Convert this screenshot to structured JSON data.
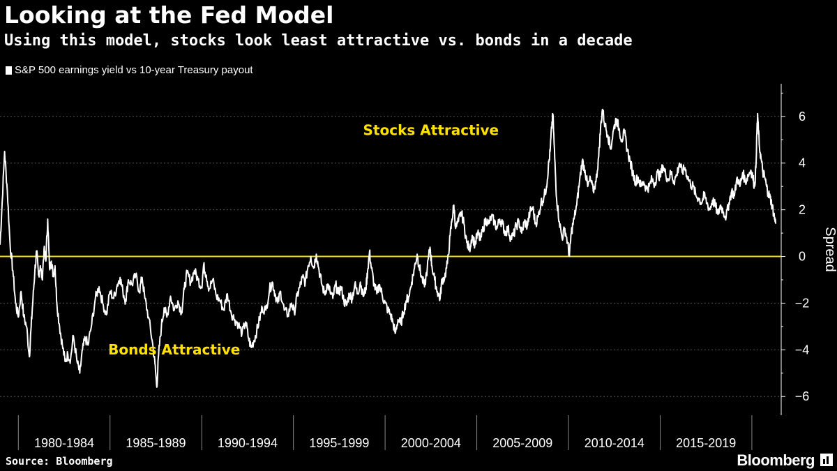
{
  "header": {
    "title": "Looking at the Fed Model",
    "subtitle": "Using this model, stocks look least attractive vs. bonds in a decade"
  },
  "footer": {
    "source": "Source: Bloomberg",
    "brand": "Bloomberg"
  },
  "colors": {
    "background": "#000000",
    "series": "#ffffff",
    "zero_line": "#ffe100",
    "annotation": "#ffe100",
    "grid": "#555555"
  },
  "chart_data": {
    "type": "line",
    "title": "Looking at the Fed Model",
    "subtitle": "Using this model, stocks look least attractive vs. bonds in a decade",
    "ylabel": "Spread",
    "xlabel": "",
    "ylim": [
      -6.8,
      7.4
    ],
    "xlim": [
      1979.0,
      2021.6
    ],
    "y_ticks": [
      -6,
      -4,
      -2,
      0,
      2,
      4,
      6
    ],
    "x_categories": [
      "1980-1984",
      "1985-1989",
      "1990-1994",
      "1995-1999",
      "2000-2004",
      "2005-2009",
      "2010-2014",
      "2015-2019"
    ],
    "x_category_bounds": [
      1980,
      1985,
      1990,
      1995,
      2000,
      2005,
      2010,
      2015,
      2020
    ],
    "grid": "horizontal dotted",
    "y_axis_position": "right",
    "legend": "top-left",
    "reference_line": {
      "y": 0,
      "color": "#ffe100"
    },
    "annotations": [
      {
        "text": "Stocks Attractive",
        "x": 2002.5,
        "y": 5.2
      },
      {
        "text": "Bonds Attractive",
        "x": 1988.5,
        "y": -4.2
      }
    ],
    "series": [
      {
        "name": "S&P 500 earnings yield vs 10-year Treasury payout",
        "color": "#ffffff",
        "points": [
          [
            1979.0,
            0.5
          ],
          [
            1979.1,
            2.0
          ],
          [
            1979.25,
            4.5
          ],
          [
            1979.4,
            2.8
          ],
          [
            1979.55,
            0.5
          ],
          [
            1979.7,
            -0.6
          ],
          [
            1979.85,
            -2.0
          ],
          [
            1980.0,
            -2.6
          ],
          [
            1980.15,
            -1.5
          ],
          [
            1980.3,
            -2.6
          ],
          [
            1980.45,
            -3.0
          ],
          [
            1980.6,
            -4.3
          ],
          [
            1980.7,
            -3.0
          ],
          [
            1980.8,
            -1.8
          ],
          [
            1980.9,
            -0.6
          ],
          [
            1981.0,
            0.2
          ],
          [
            1981.1,
            -0.8
          ],
          [
            1981.2,
            -0.4
          ],
          [
            1981.3,
            -1.0
          ],
          [
            1981.4,
            0.3
          ],
          [
            1981.5,
            -0.2
          ],
          [
            1981.6,
            1.6
          ],
          [
            1981.7,
            -0.5
          ],
          [
            1981.8,
            -0.2
          ],
          [
            1981.9,
            -0.8
          ],
          [
            1982.0,
            -0.4
          ],
          [
            1982.1,
            -2.0
          ],
          [
            1982.25,
            -3.0
          ],
          [
            1982.4,
            -3.8
          ],
          [
            1982.55,
            -4.5
          ],
          [
            1982.7,
            -4.2
          ],
          [
            1982.85,
            -4.4
          ],
          [
            1983.0,
            -3.4
          ],
          [
            1983.2,
            -4.5
          ],
          [
            1983.35,
            -5.0
          ],
          [
            1983.5,
            -4.0
          ],
          [
            1983.65,
            -3.5
          ],
          [
            1983.8,
            -3.8
          ],
          [
            1984.0,
            -2.9
          ],
          [
            1984.2,
            -1.8
          ],
          [
            1984.4,
            -1.3
          ],
          [
            1984.6,
            -2.0
          ],
          [
            1984.8,
            -2.5
          ],
          [
            1985.0,
            -1.5
          ],
          [
            1985.2,
            -1.8
          ],
          [
            1985.4,
            -1.2
          ],
          [
            1985.55,
            -0.9
          ],
          [
            1985.7,
            -1.5
          ],
          [
            1985.85,
            -1.9
          ],
          [
            1986.0,
            -1.0
          ],
          [
            1986.2,
            -1.2
          ],
          [
            1986.4,
            -0.8
          ],
          [
            1986.6,
            -1.5
          ],
          [
            1986.75,
            -0.9
          ],
          [
            1986.9,
            -1.8
          ],
          [
            1987.1,
            -2.6
          ],
          [
            1987.3,
            -3.6
          ],
          [
            1987.45,
            -4.6
          ],
          [
            1987.55,
            -5.6
          ],
          [
            1987.65,
            -4.2
          ],
          [
            1987.8,
            -3.0
          ],
          [
            1987.95,
            -2.2
          ],
          [
            1988.1,
            -2.6
          ],
          [
            1988.3,
            -1.7
          ],
          [
            1988.5,
            -2.3
          ],
          [
            1988.7,
            -1.9
          ],
          [
            1988.9,
            -2.4
          ],
          [
            1989.05,
            -1.4
          ],
          [
            1989.2,
            -0.7
          ],
          [
            1989.4,
            -1.1
          ],
          [
            1989.6,
            -0.6
          ],
          [
            1989.8,
            -1.0
          ],
          [
            1990.0,
            -1.3
          ],
          [
            1990.1,
            -0.4
          ],
          [
            1990.25,
            -0.8
          ],
          [
            1990.4,
            -1.4
          ],
          [
            1990.6,
            -1.0
          ],
          [
            1990.8,
            -1.7
          ],
          [
            1991.0,
            -1.9
          ],
          [
            1991.2,
            -2.3
          ],
          [
            1991.4,
            -1.6
          ],
          [
            1991.6,
            -2.4
          ],
          [
            1991.8,
            -2.7
          ],
          [
            1992.0,
            -2.9
          ],
          [
            1992.2,
            -3.3
          ],
          [
            1992.4,
            -2.8
          ],
          [
            1992.55,
            -3.5
          ],
          [
            1992.7,
            -3.9
          ],
          [
            1992.85,
            -3.6
          ],
          [
            1993.0,
            -3.2
          ],
          [
            1993.15,
            -2.7
          ],
          [
            1993.3,
            -2.2
          ],
          [
            1993.5,
            -2.3
          ],
          [
            1993.7,
            -1.4
          ],
          [
            1993.85,
            -1.1
          ],
          [
            1994.0,
            -1.6
          ],
          [
            1994.15,
            -2.0
          ],
          [
            1994.3,
            -1.5
          ],
          [
            1994.5,
            -2.3
          ],
          [
            1994.7,
            -2.5
          ],
          [
            1994.9,
            -2.0
          ],
          [
            1995.05,
            -2.4
          ],
          [
            1995.2,
            -1.7
          ],
          [
            1995.35,
            -1.3
          ],
          [
            1995.5,
            -0.9
          ],
          [
            1995.65,
            -1.1
          ],
          [
            1995.8,
            -0.4
          ],
          [
            1995.95,
            0.0
          ],
          [
            1996.1,
            -0.5
          ],
          [
            1996.25,
            0.1
          ],
          [
            1996.4,
            -0.6
          ],
          [
            1996.55,
            -1.2
          ],
          [
            1996.7,
            -1.6
          ],
          [
            1996.85,
            -1.2
          ],
          [
            1997.0,
            -1.5
          ],
          [
            1997.15,
            -1.8
          ],
          [
            1997.3,
            -1.2
          ],
          [
            1997.45,
            -1.6
          ],
          [
            1997.6,
            -1.3
          ],
          [
            1997.75,
            -1.9
          ],
          [
            1997.9,
            -2.1
          ],
          [
            1998.05,
            -1.6
          ],
          [
            1998.2,
            -1.8
          ],
          [
            1998.35,
            -1.2
          ],
          [
            1998.5,
            -1.6
          ],
          [
            1998.65,
            -1.1
          ],
          [
            1998.8,
            -1.7
          ],
          [
            1998.95,
            -1.4
          ],
          [
            1999.05,
            -0.6
          ],
          [
            1999.15,
            0.2
          ],
          [
            1999.25,
            -0.5
          ],
          [
            1999.4,
            -1.2
          ],
          [
            1999.55,
            -1.6
          ],
          [
            1999.7,
            -1.2
          ],
          [
            1999.85,
            -1.7
          ],
          [
            2000.0,
            -2.0
          ],
          [
            2000.15,
            -2.3
          ],
          [
            2000.3,
            -2.5
          ],
          [
            2000.45,
            -2.9
          ],
          [
            2000.55,
            -3.3
          ],
          [
            2000.7,
            -2.7
          ],
          [
            2000.85,
            -2.9
          ],
          [
            2001.0,
            -2.4
          ],
          [
            2001.15,
            -1.9
          ],
          [
            2001.3,
            -1.7
          ],
          [
            2001.45,
            -1.1
          ],
          [
            2001.6,
            -0.5
          ],
          [
            2001.75,
            0.1
          ],
          [
            2001.85,
            -0.4
          ],
          [
            2002.0,
            -0.9
          ],
          [
            2002.15,
            -1.3
          ],
          [
            2002.3,
            -0.5
          ],
          [
            2002.45,
            0.4
          ],
          [
            2002.55,
            -0.4
          ],
          [
            2002.7,
            -1.0
          ],
          [
            2002.85,
            -1.5
          ],
          [
            2003.0,
            -1.8
          ],
          [
            2003.1,
            -1.0
          ],
          [
            2003.25,
            -0.9
          ],
          [
            2003.4,
            -0.3
          ],
          [
            2003.55,
            0.9
          ],
          [
            2003.65,
            1.6
          ],
          [
            2003.75,
            2.2
          ],
          [
            2003.85,
            1.2
          ],
          [
            2004.0,
            1.5
          ],
          [
            2004.15,
            1.9
          ],
          [
            2004.3,
            1.4
          ],
          [
            2004.45,
            0.6
          ],
          [
            2004.6,
            0.3
          ],
          [
            2004.75,
            0.9
          ],
          [
            2004.9,
            0.5
          ],
          [
            2005.05,
            1.0
          ],
          [
            2005.2,
            0.7
          ],
          [
            2005.35,
            1.2
          ],
          [
            2005.5,
            1.6
          ],
          [
            2005.65,
            1.4
          ],
          [
            2005.8,
            1.7
          ],
          [
            2005.95,
            1.5
          ],
          [
            2006.1,
            1.2
          ],
          [
            2006.25,
            1.6
          ],
          [
            2006.4,
            1.4
          ],
          [
            2006.55,
            1.0
          ],
          [
            2006.7,
            1.2
          ],
          [
            2006.85,
            0.8
          ],
          [
            2007.0,
            0.9
          ],
          [
            2007.15,
            1.3
          ],
          [
            2007.3,
            1.5
          ],
          [
            2007.45,
            1.0
          ],
          [
            2007.6,
            1.5
          ],
          [
            2007.75,
            1.3
          ],
          [
            2007.9,
            1.9
          ],
          [
            2008.05,
            2.1
          ],
          [
            2008.2,
            1.4
          ],
          [
            2008.35,
            1.7
          ],
          [
            2008.5,
            2.3
          ],
          [
            2008.65,
            2.5
          ],
          [
            2008.8,
            3.0
          ],
          [
            2008.9,
            3.8
          ],
          [
            2009.0,
            4.5
          ],
          [
            2009.08,
            5.5
          ],
          [
            2009.15,
            6.1
          ],
          [
            2009.25,
            4.2
          ],
          [
            2009.35,
            2.5
          ],
          [
            2009.5,
            1.5
          ],
          [
            2009.65,
            0.8
          ],
          [
            2009.8,
            1.2
          ],
          [
            2009.95,
            0.6
          ],
          [
            2010.05,
            0.0
          ],
          [
            2010.15,
            1.0
          ],
          [
            2010.3,
            1.6
          ],
          [
            2010.45,
            2.2
          ],
          [
            2010.6,
            3.2
          ],
          [
            2010.75,
            4.1
          ],
          [
            2010.9,
            3.7
          ],
          [
            2011.05,
            3.0
          ],
          [
            2011.2,
            3.3
          ],
          [
            2011.35,
            2.8
          ],
          [
            2011.5,
            3.2
          ],
          [
            2011.65,
            4.3
          ],
          [
            2011.75,
            5.5
          ],
          [
            2011.85,
            6.3
          ],
          [
            2012.0,
            5.6
          ],
          [
            2012.15,
            5.2
          ],
          [
            2012.3,
            4.6
          ],
          [
            2012.45,
            5.4
          ],
          [
            2012.6,
            5.9
          ],
          [
            2012.75,
            5.5
          ],
          [
            2012.9,
            5.0
          ],
          [
            2013.05,
            5.3
          ],
          [
            2013.2,
            4.6
          ],
          [
            2013.35,
            4.1
          ],
          [
            2013.5,
            3.6
          ],
          [
            2013.65,
            3.2
          ],
          [
            2013.8,
            3.4
          ],
          [
            2013.95,
            3.0
          ],
          [
            2014.1,
            3.2
          ],
          [
            2014.25,
            2.9
          ],
          [
            2014.4,
            3.0
          ],
          [
            2014.55,
            3.3
          ],
          [
            2014.7,
            3.1
          ],
          [
            2014.85,
            3.6
          ],
          [
            2015.0,
            3.4
          ],
          [
            2015.15,
            3.9
          ],
          [
            2015.3,
            3.5
          ],
          [
            2015.45,
            3.3
          ],
          [
            2015.6,
            3.6
          ],
          [
            2015.75,
            3.2
          ],
          [
            2015.9,
            3.5
          ],
          [
            2016.05,
            4.0
          ],
          [
            2016.2,
            3.6
          ],
          [
            2016.35,
            3.8
          ],
          [
            2016.5,
            3.4
          ],
          [
            2016.65,
            3.1
          ],
          [
            2016.8,
            3.0
          ],
          [
            2016.95,
            2.6
          ],
          [
            2017.1,
            2.5
          ],
          [
            2017.25,
            2.3
          ],
          [
            2017.4,
            2.6
          ],
          [
            2017.55,
            2.3
          ],
          [
            2017.7,
            2.0
          ],
          [
            2017.85,
            2.4
          ],
          [
            2018.0,
            2.2
          ],
          [
            2018.15,
            1.8
          ],
          [
            2018.3,
            2.2
          ],
          [
            2018.45,
            1.9
          ],
          [
            2018.6,
            1.7
          ],
          [
            2018.75,
            2.3
          ],
          [
            2018.9,
            2.8
          ],
          [
            2019.05,
            2.6
          ],
          [
            2019.2,
            3.4
          ],
          [
            2019.35,
            3.0
          ],
          [
            2019.5,
            3.6
          ],
          [
            2019.65,
            3.2
          ],
          [
            2019.8,
            3.5
          ],
          [
            2019.95,
            3.7
          ],
          [
            2020.05,
            3.4
          ],
          [
            2020.15,
            3.0
          ],
          [
            2020.22,
            3.8
          ],
          [
            2020.28,
            5.5
          ],
          [
            2020.32,
            6.0
          ],
          [
            2020.4,
            4.8
          ],
          [
            2020.5,
            4.2
          ],
          [
            2020.6,
            3.6
          ],
          [
            2020.7,
            3.4
          ],
          [
            2020.8,
            3.0
          ],
          [
            2020.9,
            2.7
          ],
          [
            2021.0,
            2.5
          ],
          [
            2021.1,
            2.2
          ],
          [
            2021.2,
            1.8
          ],
          [
            2021.3,
            1.4
          ]
        ]
      }
    ]
  }
}
